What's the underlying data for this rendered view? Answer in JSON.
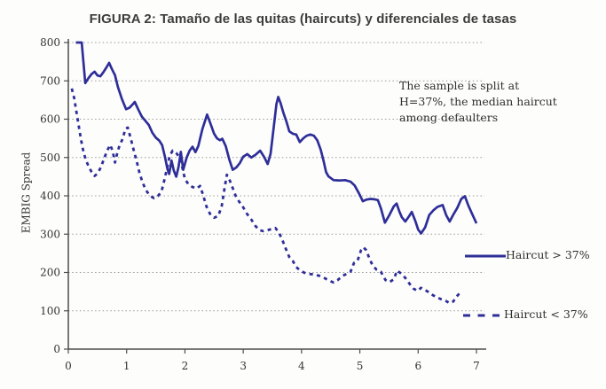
{
  "chart_data": {
    "type": "line",
    "title": "FIGURA 2: Tamaño de las quitas (haircuts) y diferenciales de tasas",
    "xlabel": "",
    "ylabel": "EMBIG Spread",
    "xlim": [
      0,
      7
    ],
    "ylim": [
      0,
      800
    ],
    "x_ticks": [
      0,
      1,
      2,
      3,
      4,
      5,
      6,
      7
    ],
    "y_ticks": [
      0,
      100,
      200,
      300,
      400,
      500,
      600,
      700,
      800
    ],
    "grid": "horizontal dotted gridlines at every 100, from 100 to 800",
    "legend_position": "inside right, stacked vertically",
    "annotation": {
      "lines": [
        "The sample is split at",
        "H=37%, the median haircut",
        "among defaulters"
      ]
    },
    "colors": {
      "line": "#2e2e99",
      "grid": "#9a9a9a",
      "axis": "#4d4d4d",
      "text": "#333333",
      "title": "#3d3d3d"
    },
    "series": [
      {
        "name": "Haircut > 37%",
        "style": "solid",
        "points": [
          [
            0.13,
            800
          ],
          [
            0.23,
            800
          ],
          [
            0.29,
            694
          ],
          [
            0.34,
            706
          ],
          [
            0.4,
            718
          ],
          [
            0.45,
            724
          ],
          [
            0.5,
            714
          ],
          [
            0.55,
            712
          ],
          [
            0.6,
            722
          ],
          [
            0.65,
            734
          ],
          [
            0.7,
            747
          ],
          [
            0.75,
            730
          ],
          [
            0.8,
            715
          ],
          [
            0.85,
            684
          ],
          [
            0.92,
            652
          ],
          [
            0.99,
            626
          ],
          [
            1.05,
            630
          ],
          [
            1.1,
            638
          ],
          [
            1.14,
            645
          ],
          [
            1.2,
            625
          ],
          [
            1.26,
            607
          ],
          [
            1.32,
            596
          ],
          [
            1.38,
            585
          ],
          [
            1.44,
            565
          ],
          [
            1.5,
            552
          ],
          [
            1.56,
            544
          ],
          [
            1.61,
            532
          ],
          [
            1.66,
            500
          ],
          [
            1.7,
            470
          ],
          [
            1.73,
            457
          ],
          [
            1.77,
            492
          ],
          [
            1.81,
            466
          ],
          [
            1.85,
            450
          ],
          [
            1.89,
            475
          ],
          [
            1.93,
            515
          ],
          [
            1.97,
            468
          ],
          [
            2.03,
            500
          ],
          [
            2.08,
            518
          ],
          [
            2.13,
            528
          ],
          [
            2.18,
            514
          ],
          [
            2.23,
            530
          ],
          [
            2.3,
            574
          ],
          [
            2.38,
            612
          ],
          [
            2.44,
            588
          ],
          [
            2.5,
            562
          ],
          [
            2.55,
            550
          ],
          [
            2.6,
            545
          ],
          [
            2.64,
            549
          ],
          [
            2.7,
            530
          ],
          [
            2.76,
            495
          ],
          [
            2.82,
            468
          ],
          [
            2.88,
            474
          ],
          [
            2.94,
            485
          ],
          [
            3.0,
            502
          ],
          [
            3.07,
            509
          ],
          [
            3.14,
            500
          ],
          [
            3.21,
            507
          ],
          [
            3.29,
            518
          ],
          [
            3.36,
            501
          ],
          [
            3.42,
            483
          ],
          [
            3.47,
            510
          ],
          [
            3.52,
            575
          ],
          [
            3.57,
            640
          ],
          [
            3.6,
            658
          ],
          [
            3.64,
            642
          ],
          [
            3.69,
            616
          ],
          [
            3.74,
            594
          ],
          [
            3.79,
            568
          ],
          [
            3.85,
            562
          ],
          [
            3.91,
            560
          ],
          [
            3.97,
            540
          ],
          [
            4.03,
            550
          ],
          [
            4.09,
            557
          ],
          [
            4.15,
            560
          ],
          [
            4.21,
            557
          ],
          [
            4.27,
            545
          ],
          [
            4.33,
            520
          ],
          [
            4.38,
            490
          ],
          [
            4.42,
            462
          ],
          [
            4.46,
            451
          ],
          [
            4.55,
            441
          ],
          [
            4.65,
            440
          ],
          [
            4.75,
            441
          ],
          [
            4.84,
            437
          ],
          [
            4.91,
            427
          ],
          [
            4.99,
            405
          ],
          [
            5.05,
            386
          ],
          [
            5.11,
            390
          ],
          [
            5.18,
            392
          ],
          [
            5.25,
            391
          ],
          [
            5.31,
            389
          ],
          [
            5.36,
            368
          ],
          [
            5.43,
            330
          ],
          [
            5.5,
            348
          ],
          [
            5.58,
            372
          ],
          [
            5.63,
            380
          ],
          [
            5.68,
            358
          ],
          [
            5.72,
            344
          ],
          [
            5.78,
            333
          ],
          [
            5.84,
            346
          ],
          [
            5.89,
            358
          ],
          [
            5.95,
            335
          ],
          [
            6.0,
            312
          ],
          [
            6.05,
            302
          ],
          [
            6.12,
            318
          ],
          [
            6.19,
            350
          ],
          [
            6.26,
            362
          ],
          [
            6.33,
            371
          ],
          [
            6.42,
            376
          ],
          [
            6.48,
            350
          ],
          [
            6.54,
            333
          ],
          [
            6.6,
            350
          ],
          [
            6.67,
            368
          ],
          [
            6.74,
            392
          ],
          [
            6.8,
            399
          ],
          [
            6.86,
            375
          ],
          [
            6.92,
            355
          ],
          [
            7.0,
            328
          ]
        ]
      },
      {
        "name": "Haircut < 37%",
        "style": "dashed",
        "points": [
          [
            0.06,
            680
          ],
          [
            0.1,
            655
          ],
          [
            0.13,
            628
          ],
          [
            0.16,
            600
          ],
          [
            0.19,
            572
          ],
          [
            0.22,
            544
          ],
          [
            0.26,
            515
          ],
          [
            0.3,
            494
          ],
          [
            0.35,
            476
          ],
          [
            0.4,
            462
          ],
          [
            0.45,
            452
          ],
          [
            0.5,
            458
          ],
          [
            0.56,
            475
          ],
          [
            0.62,
            500
          ],
          [
            0.68,
            522
          ],
          [
            0.72,
            533
          ],
          [
            0.76,
            517
          ],
          [
            0.8,
            487
          ],
          [
            0.84,
            512
          ],
          [
            0.88,
            532
          ],
          [
            0.93,
            548
          ],
          [
            0.98,
            575
          ],
          [
            1.02,
            578
          ],
          [
            1.07,
            550
          ],
          [
            1.12,
            520
          ],
          [
            1.17,
            492
          ],
          [
            1.22,
            460
          ],
          [
            1.27,
            436
          ],
          [
            1.33,
            415
          ],
          [
            1.4,
            400
          ],
          [
            1.47,
            394
          ],
          [
            1.54,
            400
          ],
          [
            1.6,
            412
          ],
          [
            1.64,
            437
          ],
          [
            1.69,
            470
          ],
          [
            1.74,
            505
          ],
          [
            1.79,
            518
          ],
          [
            1.85,
            512
          ],
          [
            1.9,
            502
          ],
          [
            1.95,
            478
          ],
          [
            2.0,
            444
          ],
          [
            2.06,
            430
          ],
          [
            2.13,
            423
          ],
          [
            2.2,
            419
          ],
          [
            2.26,
            426
          ],
          [
            2.31,
            403
          ],
          [
            2.37,
            372
          ],
          [
            2.44,
            350
          ],
          [
            2.5,
            343
          ],
          [
            2.57,
            347
          ],
          [
            2.63,
            372
          ],
          [
            2.68,
            420
          ],
          [
            2.72,
            455
          ],
          [
            2.77,
            440
          ],
          [
            2.82,
            420
          ],
          [
            2.87,
            400
          ],
          [
            2.93,
            385
          ],
          [
            3.0,
            370
          ],
          [
            3.07,
            352
          ],
          [
            3.14,
            338
          ],
          [
            3.2,
            323
          ],
          [
            3.27,
            311
          ],
          [
            3.34,
            308
          ],
          [
            3.41,
            310
          ],
          [
            3.48,
            313
          ],
          [
            3.55,
            316
          ],
          [
            3.61,
            305
          ],
          [
            3.67,
            285
          ],
          [
            3.73,
            262
          ],
          [
            3.79,
            240
          ],
          [
            3.85,
            230
          ],
          [
            3.91,
            214
          ],
          [
            3.97,
            206
          ],
          [
            4.05,
            199
          ],
          [
            4.13,
            196
          ],
          [
            4.22,
            195
          ],
          [
            4.31,
            191
          ],
          [
            4.4,
            185
          ],
          [
            4.48,
            178
          ],
          [
            4.55,
            174
          ],
          [
            4.62,
            180
          ],
          [
            4.7,
            191
          ],
          [
            4.78,
            197
          ],
          [
            4.84,
            202
          ],
          [
            4.9,
            225
          ],
          [
            4.96,
            230
          ],
          [
            5.02,
            258
          ],
          [
            5.06,
            266
          ],
          [
            5.11,
            258
          ],
          [
            5.16,
            238
          ],
          [
            5.22,
            218
          ],
          [
            5.29,
            207
          ],
          [
            5.36,
            202
          ],
          [
            5.44,
            180
          ],
          [
            5.51,
            175
          ],
          [
            5.58,
            182
          ],
          [
            5.64,
            205
          ],
          [
            5.71,
            197
          ],
          [
            5.78,
            186
          ],
          [
            5.85,
            171
          ],
          [
            5.92,
            158
          ],
          [
            5.99,
            152
          ],
          [
            6.05,
            160
          ],
          [
            6.12,
            154
          ],
          [
            6.18,
            149
          ],
          [
            6.25,
            141
          ],
          [
            6.32,
            135
          ],
          [
            6.4,
            130
          ],
          [
            6.47,
            126
          ],
          [
            6.54,
            120
          ],
          [
            6.6,
            124
          ],
          [
            6.66,
            137
          ],
          [
            6.72,
            148
          ]
        ]
      }
    ]
  }
}
